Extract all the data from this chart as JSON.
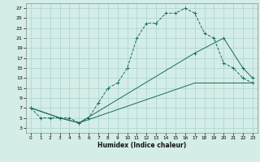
{
  "xlabel": "Humidex (Indice chaleur)",
  "background_color": "#d4ede8",
  "grid_color": "#a8d4cc",
  "line_color": "#1a6b5a",
  "xlim": [
    -0.5,
    23.5
  ],
  "ylim": [
    2,
    28
  ],
  "xticks": [
    0,
    1,
    2,
    3,
    4,
    5,
    6,
    7,
    8,
    9,
    10,
    11,
    12,
    13,
    14,
    15,
    16,
    17,
    18,
    19,
    20,
    21,
    22,
    23
  ],
  "yticks": [
    3,
    5,
    7,
    9,
    11,
    13,
    15,
    17,
    19,
    21,
    23,
    25,
    27
  ],
  "line1_x": [
    0,
    1,
    2,
    3,
    4,
    5,
    6,
    7,
    8,
    9,
    10,
    11,
    12,
    13,
    14,
    15,
    16,
    17,
    18,
    19,
    20,
    21,
    22,
    23
  ],
  "line1_y": [
    7,
    5,
    5,
    5,
    5,
    4,
    5,
    8,
    11,
    12,
    15,
    21,
    24,
    24,
    26,
    26,
    27,
    26,
    22,
    21,
    16,
    15,
    13,
    12
  ],
  "line2_x": [
    0,
    3,
    5,
    17,
    20,
    22,
    23
  ],
  "line2_y": [
    7,
    5,
    4,
    18,
    21,
    15,
    13
  ],
  "line3_x": [
    0,
    3,
    5,
    17,
    20,
    22,
    23
  ],
  "line3_y": [
    7,
    5,
    4,
    12,
    12,
    12,
    12
  ]
}
